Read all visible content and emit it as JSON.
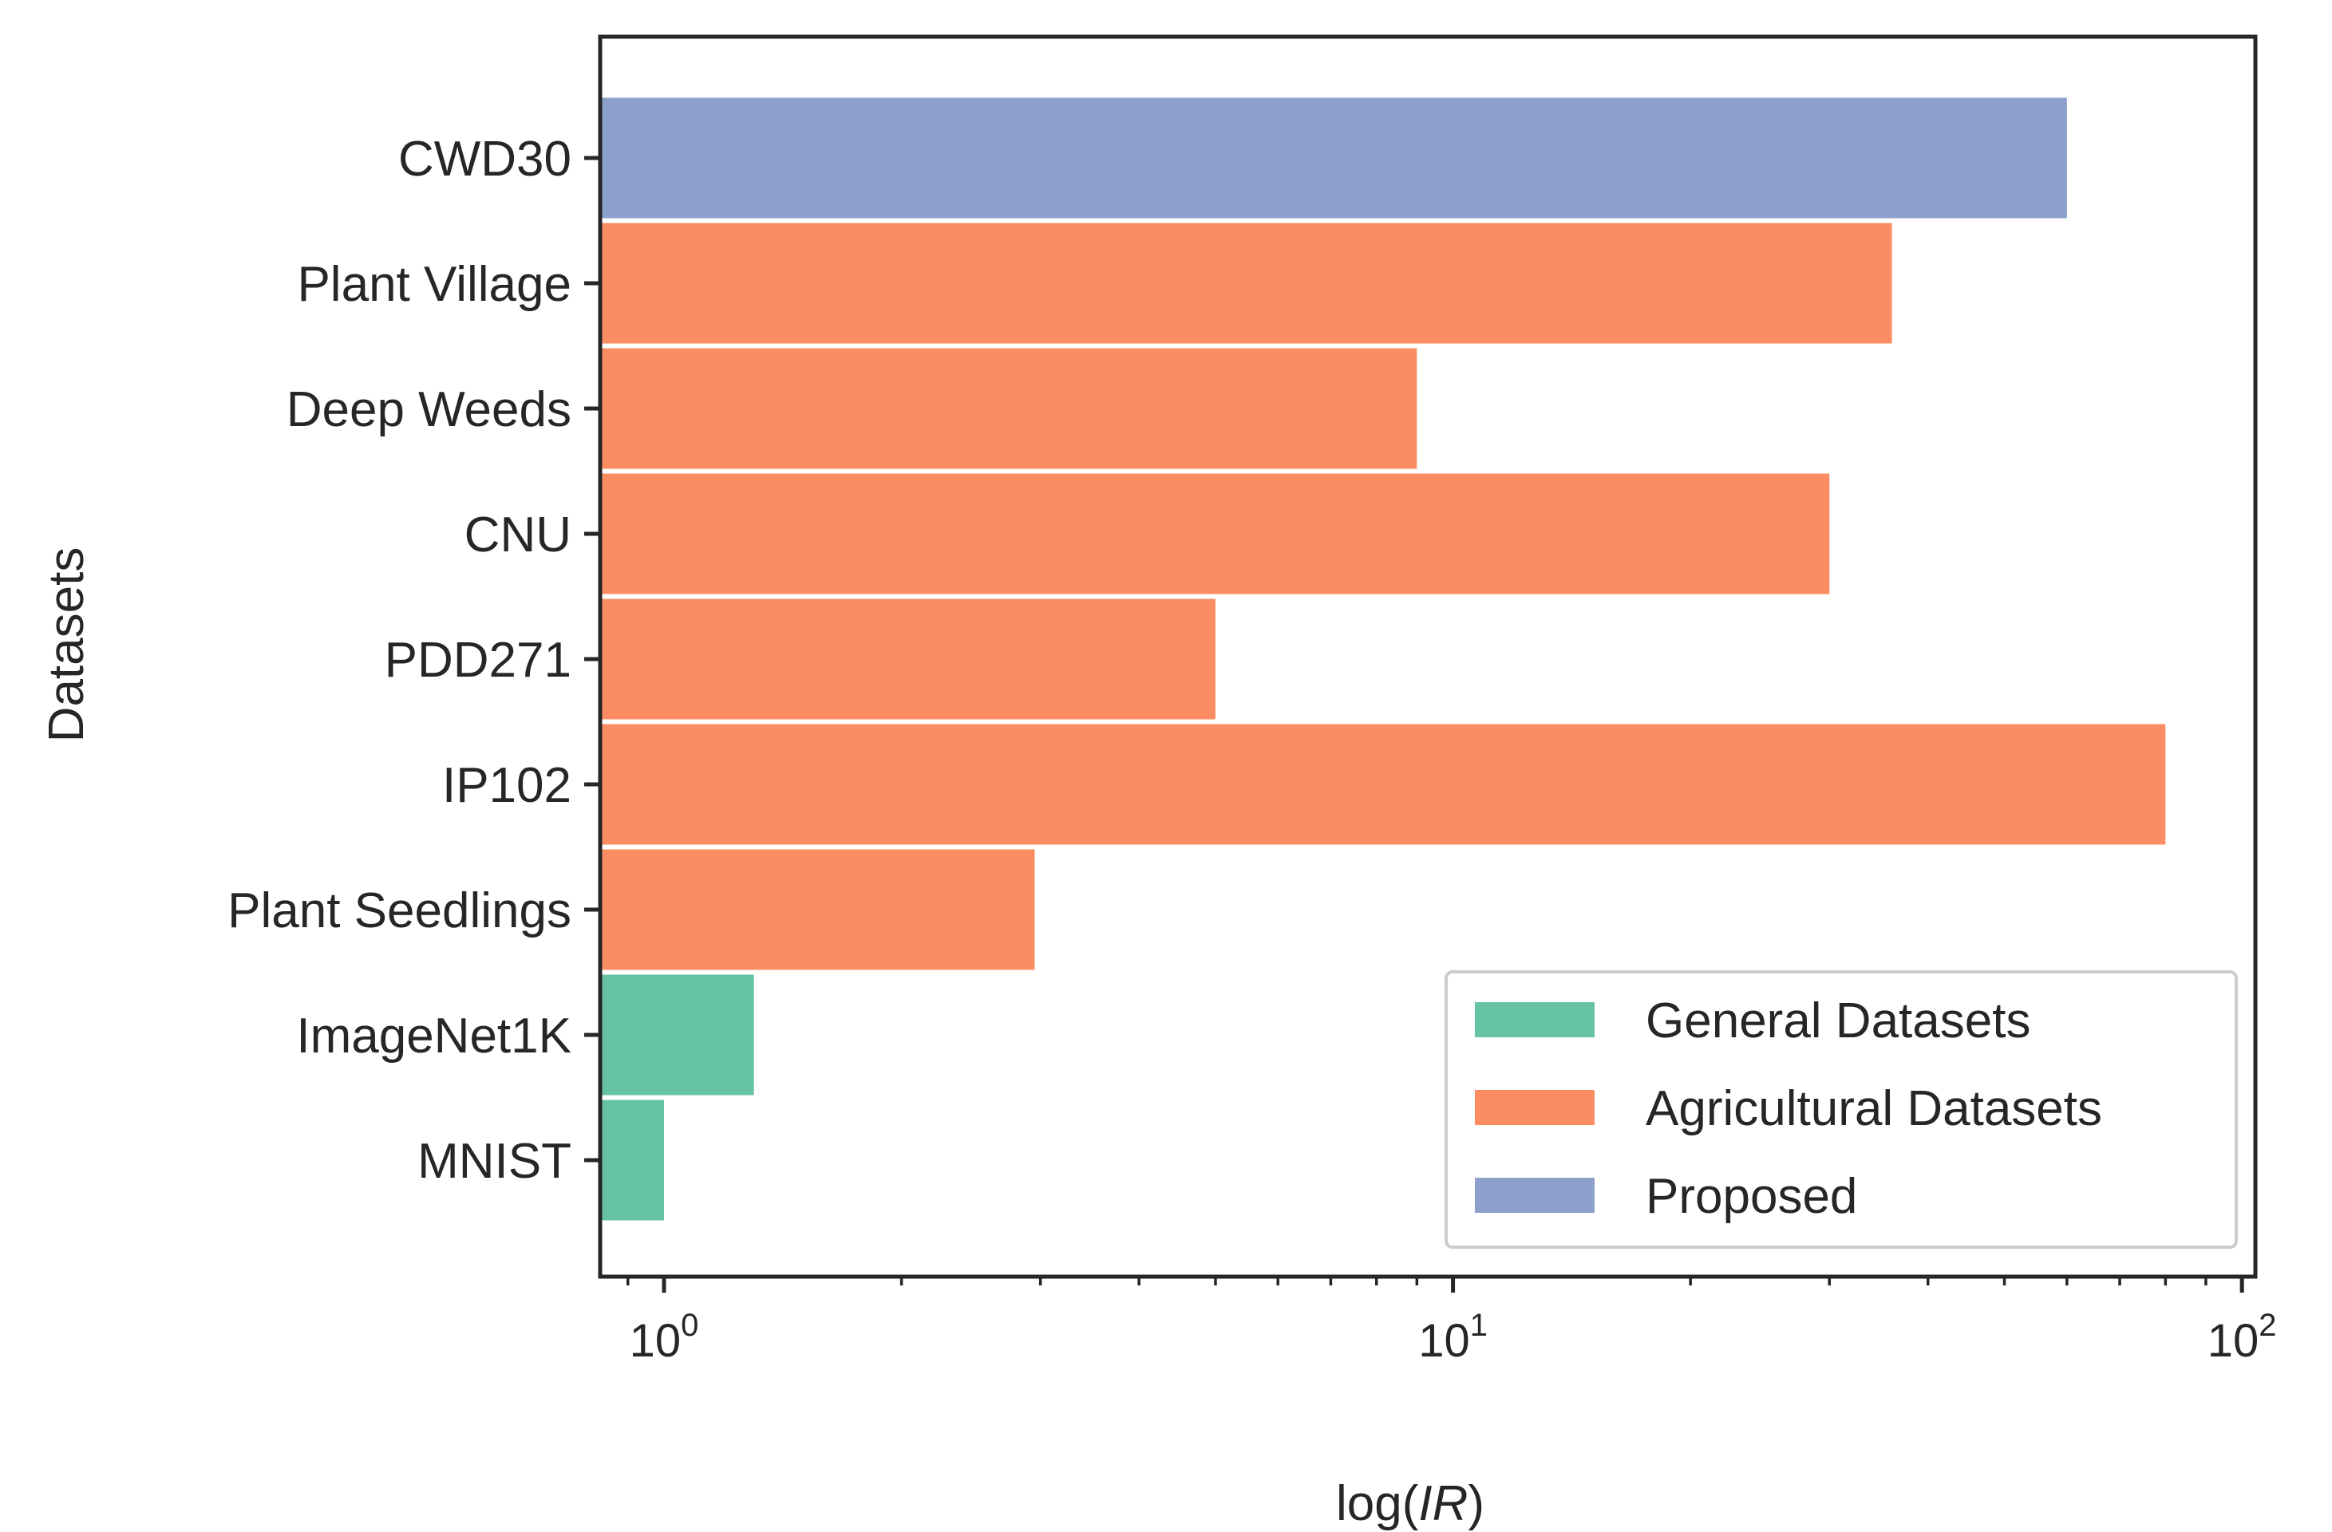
{
  "chart_data": {
    "type": "bar",
    "orientation": "horizontal",
    "x_scale": "log",
    "title": "",
    "xlabel": "log(IR)",
    "ylabel": "Datasets",
    "xlim": [
      0.83,
      104
    ],
    "x_ticks": [
      {
        "value": 1,
        "base": "10",
        "exp": "0"
      },
      {
        "value": 10,
        "base": "10",
        "exp": "1"
      },
      {
        "value": 100,
        "base": "10",
        "exp": "2"
      }
    ],
    "categories": [
      "CWD30",
      "Plant Village",
      "Deep Weeds",
      "CNU",
      "PDD271",
      "IP102",
      "Plant Seedlings",
      "ImageNet1K",
      "MNIST"
    ],
    "values": [
      60,
      36,
      9,
      30,
      5,
      80,
      2.95,
      1.3,
      1.0
    ],
    "groups": [
      "Proposed",
      "Agricultural Datasets",
      "Agricultural Datasets",
      "Agricultural Datasets",
      "Agricultural Datasets",
      "Agricultural Datasets",
      "Agricultural Datasets",
      "General Datasets",
      "General Datasets"
    ],
    "legend": {
      "position": "lower-right",
      "entries": [
        {
          "label": "General Datasets",
          "color": "#66c2a5"
        },
        {
          "label": "Agricultural Datasets",
          "color": "#fc8d62"
        },
        {
          "label": "Proposed",
          "color": "#8da0cb"
        }
      ]
    },
    "grid": false
  }
}
